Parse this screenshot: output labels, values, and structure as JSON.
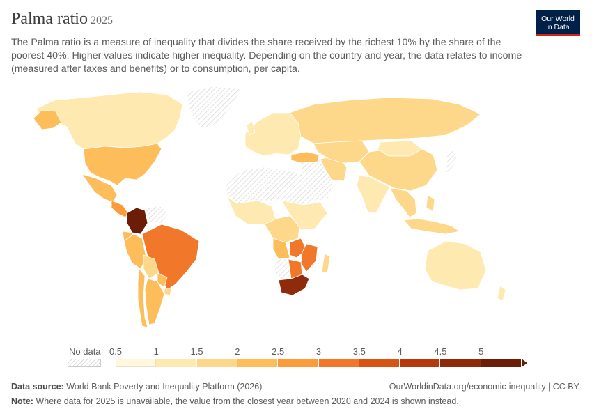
{
  "header": {
    "title": "Palma ratio",
    "year": "2025",
    "subtitle": "The Palma ratio is a measure of inequality that divides the share received by the richest 10% by the share of the poorest 40%. Higher values indicate higher inequality. Depending on the country and year, the data relates to income (measured after taxes and benefits) or to consumption, per capita."
  },
  "logo": {
    "line1": "Our World",
    "line2": "in Data"
  },
  "legend": {
    "no_data_label": "No data",
    "ticks": [
      "0.5",
      "1",
      "1.5",
      "2",
      "2.5",
      "3",
      "3.5",
      "4",
      "4.5",
      "5"
    ],
    "bin_colors": [
      "#fff8dc",
      "#fee9b0",
      "#fdd88a",
      "#fcbd5a",
      "#fb9b3a",
      "#f1772a",
      "#d95414",
      "#b5390c",
      "#8f2a0a",
      "#6b1d08"
    ]
  },
  "footer": {
    "source_label": "Data source:",
    "source_text": "World Bank Poverty and Inequality Platform (2026)",
    "url_text": "OurWorldinData.org/economic-inequality | CC BY",
    "note_label": "Note:",
    "note_text": "Where data for 2025 is unavailable, the value from the closest year between 2020 and 2024 is shown instead."
  },
  "colors": {
    "no_data_hatch": "#d9d9d9",
    "land_outline": "#ffffff",
    "logo_bg": "#002147",
    "logo_accent": "#ce261e"
  },
  "map_regions": [
    {
      "name": "canada",
      "bin": 1
    },
    {
      "name": "usa",
      "bin": 3
    },
    {
      "name": "mexico",
      "bin": 3
    },
    {
      "name": "central-america",
      "bin": 4
    },
    {
      "name": "colombia",
      "bin": 9
    },
    {
      "name": "venezuela",
      "bin": null
    },
    {
      "name": "ecuador",
      "bin": 3
    },
    {
      "name": "peru",
      "bin": 3
    },
    {
      "name": "bolivia",
      "bin": 2
    },
    {
      "name": "brazil",
      "bin": 5
    },
    {
      "name": "paraguay",
      "bin": 3
    },
    {
      "name": "argentina",
      "bin": 3
    },
    {
      "name": "chile",
      "bin": 3
    },
    {
      "name": "uruguay",
      "bin": 2
    },
    {
      "name": "greenland",
      "bin": null
    },
    {
      "name": "europe",
      "bin": 1
    },
    {
      "name": "russia",
      "bin": 2
    },
    {
      "name": "turkey",
      "bin": 3
    },
    {
      "name": "middle-east",
      "bin": null
    },
    {
      "name": "iran",
      "bin": 2
    },
    {
      "name": "central-asia",
      "bin": 2
    },
    {
      "name": "china",
      "bin": 2
    },
    {
      "name": "mongolia",
      "bin": 1
    },
    {
      "name": "india",
      "bin": 1
    },
    {
      "name": "southeast-asia",
      "bin": 2
    },
    {
      "name": "japan",
      "bin": null
    },
    {
      "name": "indonesia",
      "bin": 2
    },
    {
      "name": "australia",
      "bin": 1
    },
    {
      "name": "north-africa",
      "bin": null
    },
    {
      "name": "west-africa",
      "bin": 1
    },
    {
      "name": "central-africa",
      "bin": 2
    },
    {
      "name": "east-africa",
      "bin": 1
    },
    {
      "name": "angola",
      "bin": 3
    },
    {
      "name": "zambia",
      "bin": 5
    },
    {
      "name": "mozambique",
      "bin": 5
    },
    {
      "name": "namibia",
      "bin": null
    },
    {
      "name": "botswana",
      "bin": 5
    },
    {
      "name": "south-africa",
      "bin": 8
    },
    {
      "name": "madagascar",
      "bin": 2
    }
  ]
}
